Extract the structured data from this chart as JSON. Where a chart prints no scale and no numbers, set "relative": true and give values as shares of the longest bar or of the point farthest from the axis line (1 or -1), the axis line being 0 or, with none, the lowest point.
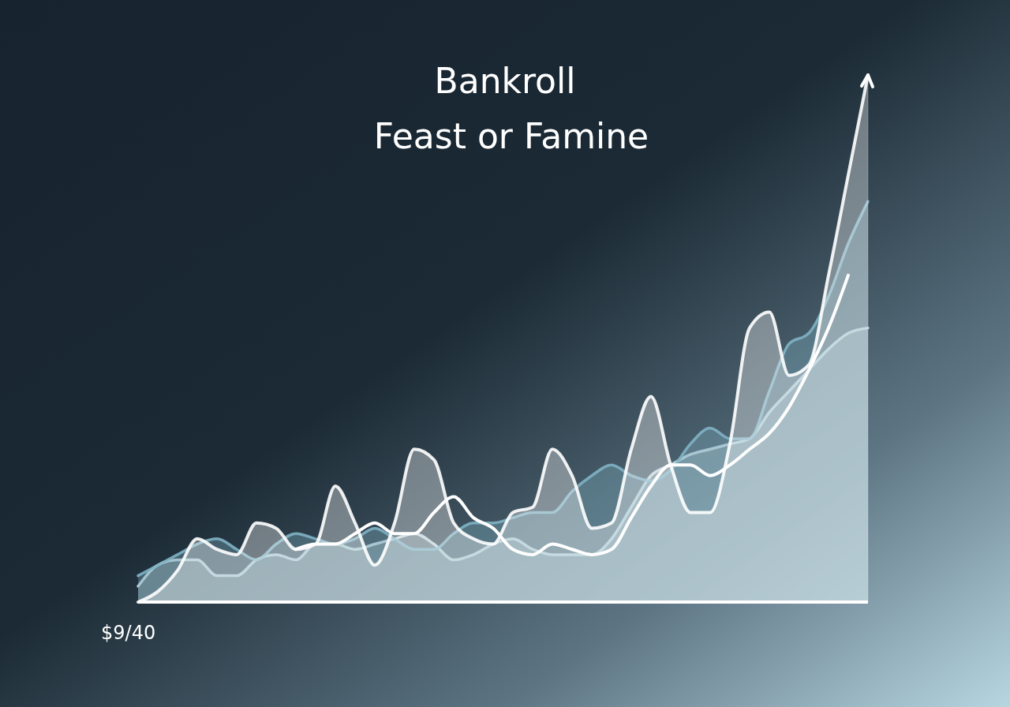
{
  "chart_data": {
    "type": "area",
    "title": "Bankroll",
    "subtitle": "Feast or Famine",
    "relative": true,
    "annotations": [
      "$9/40"
    ],
    "categories": [
      null,
      null,
      null,
      null,
      null,
      null,
      null,
      null,
      null,
      null,
      null,
      null,
      null,
      null,
      null,
      null,
      null,
      null,
      null,
      null,
      null,
      null,
      null,
      null,
      null,
      null,
      null,
      null,
      null,
      null,
      null,
      null,
      null,
      null,
      null,
      null,
      null,
      null
    ],
    "series": [
      {
        "color": "#c9dde3",
        "values": [
          0.03,
          0.07,
          0.08,
          0.08,
          0.05,
          0.05,
          0.08,
          0.09,
          0.08,
          0.11,
          0.11,
          0.1,
          0.11,
          0.12,
          0.13,
          0.11,
          0.08,
          0.09,
          0.11,
          0.12,
          0.1,
          0.09,
          0.09,
          0.09,
          0.12,
          0.18,
          0.24,
          0.26,
          0.28,
          0.29,
          0.3,
          0.31,
          0.36,
          0.4,
          0.44,
          0.48,
          0.51,
          0.52
        ]
      },
      {
        "color": "#7fb3c4",
        "values": [
          0.05,
          0.07,
          0.09,
          0.11,
          0.12,
          0.1,
          0.08,
          0.11,
          0.13,
          0.12,
          0.11,
          0.12,
          0.14,
          0.12,
          0.1,
          0.1,
          0.13,
          0.15,
          0.15,
          0.16,
          0.17,
          0.17,
          0.21,
          0.24,
          0.26,
          0.24,
          0.23,
          0.25,
          0.3,
          0.33,
          0.31,
          0.31,
          0.4,
          0.49,
          0.51,
          0.58,
          0.68,
          0.76
        ]
      },
      {
        "type": "line",
        "color": "#ffffff",
        "values": [
          null,
          null,
          null,
          null,
          null,
          null,
          null,
          null,
          0.1,
          0.11,
          0.11,
          0.13,
          0.15,
          0.13,
          0.13,
          0.17,
          0.2,
          0.16,
          0.14,
          0.1,
          0.09,
          0.11,
          0.1,
          0.09,
          0.1,
          0.16,
          0.22,
          0.26,
          0.26,
          0.24,
          0.26,
          0.29,
          0.32,
          0.37,
          0.44,
          0.52,
          0.62,
          null
        ]
      },
      {
        "type": "area",
        "color": "#ffffff",
        "values": [
          0,
          0.02,
          0.06,
          0.12,
          0.1,
          0.09,
          0.15,
          0.14,
          0.1,
          0.11,
          0.22,
          0.15,
          0.07,
          0.15,
          0.29,
          0.27,
          0.15,
          0.12,
          0.11,
          0.17,
          0.18,
          0.29,
          0.24,
          0.14,
          0.15,
          0.29,
          0.39,
          0.26,
          0.17,
          0.17,
          0.3,
          0.52,
          0.55,
          0.43,
          0.45,
          0.62,
          0.81,
          1
        ]
      }
    ]
  }
}
